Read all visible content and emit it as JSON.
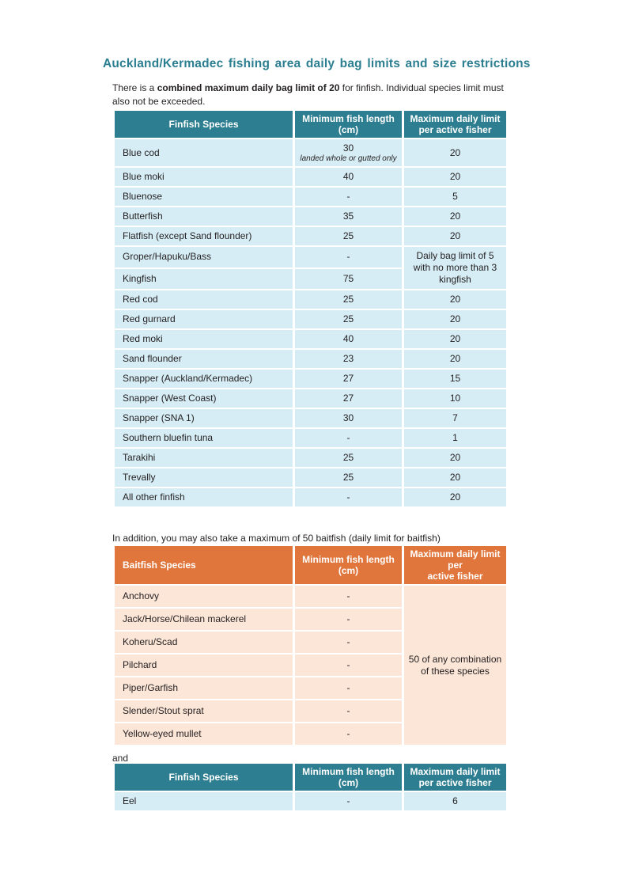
{
  "colors": {
    "title": "#2a7e90",
    "teal_header": "#2d7e90",
    "teal_row": "#d6edf5",
    "orange_header": "#e0763c",
    "orange_row": "#fce6d8",
    "header_text": "#ffffff",
    "body_text": "#231f20"
  },
  "page": {
    "title": "Auckland/Kermadec fishing area daily bag limits and size restrictions",
    "intro": {
      "prefix": "There is a ",
      "bold": "combined maximum daily bag limit of 20",
      "suffix": " for finfish. Individual species limit must also not be exceeded."
    },
    "baitfish_note": "In addition, you may also take a maximum of 50 baitfish (daily limit for baitfish)",
    "and_text": "and"
  },
  "tables": [
    {
      "name": "finfish",
      "theme": "teal",
      "headers": [
        "Finfish Species",
        "Minimum fish length\n(cm)",
        "Maximum daily limit\nper active fisher"
      ],
      "rows": [
        {
          "cells": [
            {
              "text": "Blue cod"
            },
            {
              "text": "30",
              "note": "landed whole or gutted only"
            },
            {
              "text": "20"
            }
          ]
        },
        {
          "cells": [
            {
              "text": "Blue moki"
            },
            {
              "text": "40"
            },
            {
              "text": "20"
            }
          ]
        },
        {
          "cells": [
            {
              "text": "Bluenose"
            },
            {
              "text": "-"
            },
            {
              "text": "5"
            }
          ]
        },
        {
          "cells": [
            {
              "text": "Butterfish"
            },
            {
              "text": "35"
            },
            {
              "text": "20"
            }
          ]
        },
        {
          "cells": [
            {
              "text": "Flatfish (except Sand flounder)"
            },
            {
              "text": "25"
            },
            {
              "text": "20"
            }
          ]
        },
        {
          "cells": [
            {
              "text": "Groper/Hapuku/Bass"
            },
            {
              "text": "-"
            },
            {
              "text": "Daily bag limit of 5 with no more than 3 kingfish",
              "rowspan": 2
            }
          ]
        },
        {
          "cells": [
            {
              "text": "Kingfish"
            },
            {
              "text": "75"
            }
          ]
        },
        {
          "cells": [
            {
              "text": "Red cod"
            },
            {
              "text": "25"
            },
            {
              "text": "20"
            }
          ]
        },
        {
          "cells": [
            {
              "text": "Red gurnard"
            },
            {
              "text": "25"
            },
            {
              "text": "20"
            }
          ]
        },
        {
          "cells": [
            {
              "text": "Red moki"
            },
            {
              "text": "40"
            },
            {
              "text": "20"
            }
          ]
        },
        {
          "cells": [
            {
              "text": "Sand flounder"
            },
            {
              "text": "23"
            },
            {
              "text": "20"
            }
          ]
        },
        {
          "cells": [
            {
              "text": "Snapper (Auckland/Kermadec)"
            },
            {
              "text": "27"
            },
            {
              "text": "15"
            }
          ]
        },
        {
          "cells": [
            {
              "text": "Snapper (West Coast)"
            },
            {
              "text": "27"
            },
            {
              "text": "10"
            }
          ]
        },
        {
          "cells": [
            {
              "text": "Snapper (SNA 1)"
            },
            {
              "text": "30"
            },
            {
              "text": "7"
            }
          ]
        },
        {
          "cells": [
            {
              "text": "Southern bluefin tuna"
            },
            {
              "text": "-"
            },
            {
              "text": "1"
            }
          ]
        },
        {
          "cells": [
            {
              "text": "Tarakihi"
            },
            {
              "text": "25"
            },
            {
              "text": "20"
            }
          ]
        },
        {
          "cells": [
            {
              "text": "Trevally"
            },
            {
              "text": "25"
            },
            {
              "text": "20"
            }
          ]
        },
        {
          "cells": [
            {
              "text": "All other finfish"
            },
            {
              "text": "-"
            },
            {
              "text": "20"
            }
          ]
        }
      ]
    },
    {
      "name": "baitfish",
      "theme": "orange",
      "headers": [
        "Baitfish Species",
        "Minimum fish length\n(cm)",
        "Maximum daily limit per\nactive fisher"
      ],
      "rows": [
        {
          "cells": [
            {
              "text": "Anchovy"
            },
            {
              "text": "-"
            },
            {
              "text": "50 of any combination of these species",
              "rowspan": 7
            }
          ]
        },
        {
          "cells": [
            {
              "text": "Jack/Horse/Chilean mackerel"
            },
            {
              "text": "-"
            }
          ]
        },
        {
          "cells": [
            {
              "text": "Koheru/Scad"
            },
            {
              "text": "-"
            }
          ]
        },
        {
          "cells": [
            {
              "text": "Pilchard"
            },
            {
              "text": "-"
            }
          ]
        },
        {
          "cells": [
            {
              "text": "Piper/Garfish"
            },
            {
              "text": "-"
            }
          ]
        },
        {
          "cells": [
            {
              "text": "Slender/Stout sprat"
            },
            {
              "text": "-"
            }
          ]
        },
        {
          "cells": [
            {
              "text": "Yellow-eyed mullet"
            },
            {
              "text": "-"
            }
          ]
        }
      ]
    },
    {
      "name": "eel",
      "theme": "teal",
      "headers": [
        "Finfish Species",
        "Minimum fish length\n(cm)",
        "Maximum daily limit\nper active fisher"
      ],
      "rows": [
        {
          "cells": [
            {
              "text": "Eel"
            },
            {
              "text": "-"
            },
            {
              "text": "6"
            }
          ]
        }
      ]
    }
  ]
}
